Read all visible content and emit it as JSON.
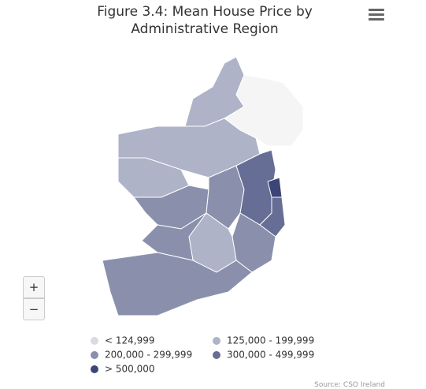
{
  "header": {
    "title": "Figure 3.4: Mean House Price by Administrative Region"
  },
  "zoom": {
    "in": "+",
    "out": "−"
  },
  "legend": [
    {
      "label": "< 124,999",
      "color": "#d9dbe4"
    },
    {
      "label": "125,000 - 199,999",
      "color": "#aeb3c8"
    },
    {
      "label": "200,000 - 299,999",
      "color": "#8a90ac"
    },
    {
      "label": "300,000 - 499,999",
      "color": "#666e95"
    },
    {
      "label": "> 500,000",
      "color": "#3b4577"
    }
  ],
  "source": "Source: CSO Ireland"
}
